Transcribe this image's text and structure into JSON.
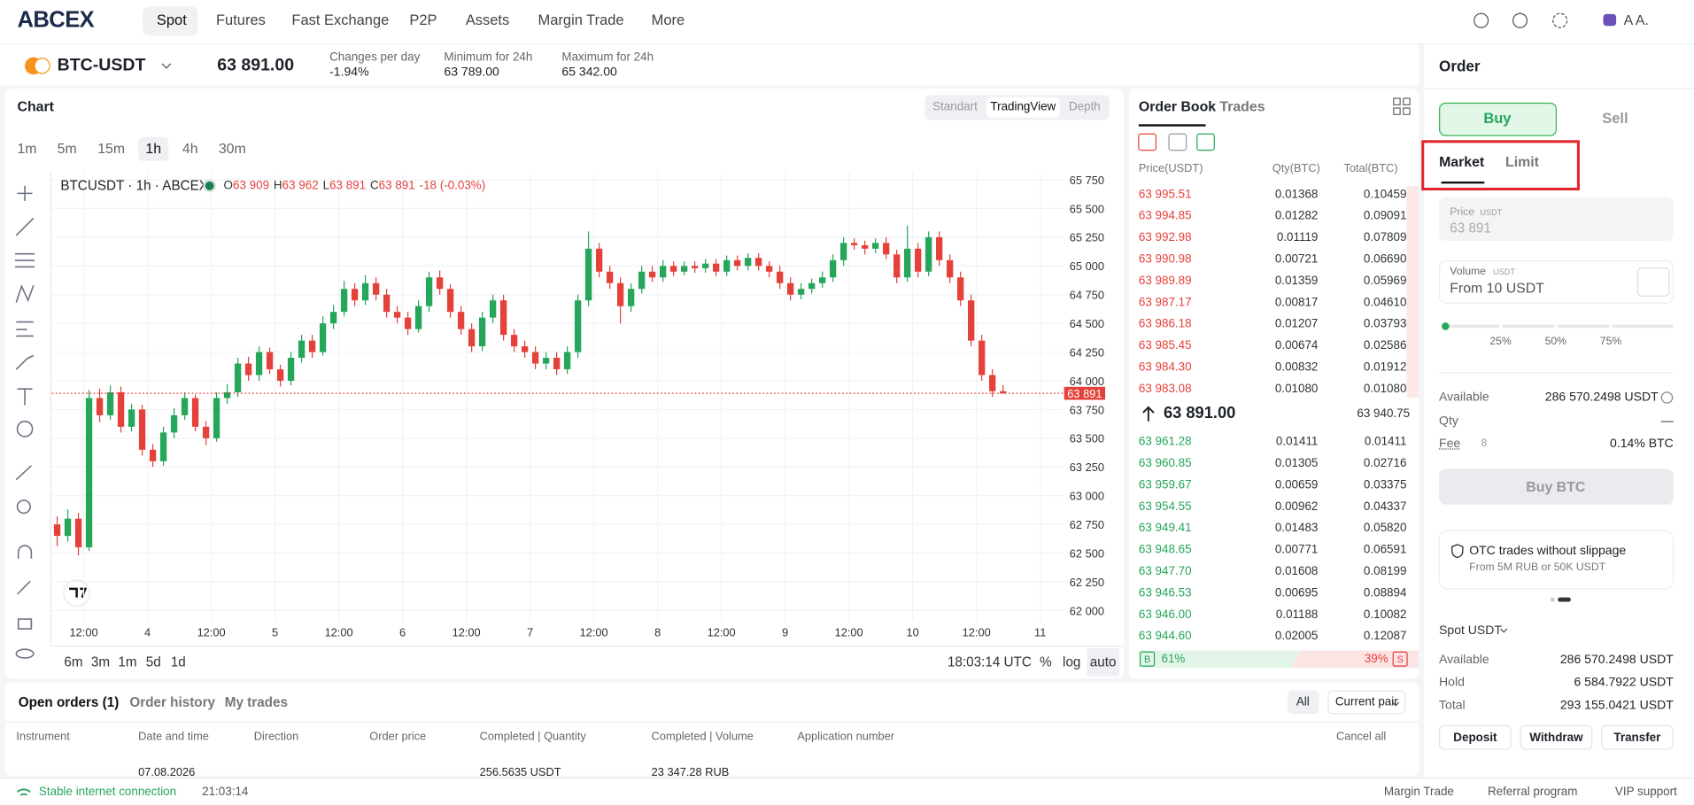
{
  "header": {
    "logo": "ABCEX",
    "nav": [
      "Spot",
      "Futures",
      "Fast Exchange",
      "P2P",
      "Assets",
      "Margin Trade",
      "More"
    ],
    "user": "A A."
  },
  "ticker": {
    "pair": "BTC-USDT",
    "price": "63 891.00",
    "stats": [
      {
        "label": "Changes per day",
        "value": "-1.94%"
      },
      {
        "label": "Minimum for 24h",
        "value": "63 789.00"
      },
      {
        "label": "Maximum for 24h",
        "value": "65 342.00"
      }
    ]
  },
  "chart_panel": {
    "title": "Chart",
    "views": [
      "Standart",
      "TradingView",
      "Depth"
    ],
    "intervals": [
      "1m",
      "5m",
      "15m",
      "1h",
      "4h",
      "30m"
    ],
    "symbol": "BTCUSDT · 1h · ABCEX",
    "ohlc": [
      "O",
      "63 909",
      "H",
      "63 962",
      "L",
      "63 891",
      "C",
      "63 891",
      "-18 (-0.03%)"
    ],
    "ranges": [
      "6m",
      "3m",
      "1m",
      "5d",
      "1d"
    ],
    "clock": "18:03:14 UTC",
    "scale_modes": [
      "%",
      "log",
      "auto"
    ]
  },
  "chart_data": {
    "type": "candlestick",
    "up_color": "#26a65b",
    "down_color": "#e5413b",
    "grid": true,
    "x": [
      1,
      3,
      5,
      7,
      9,
      11,
      13,
      15,
      17,
      19,
      21,
      23,
      25,
      27,
      29,
      31,
      33,
      35,
      37,
      39,
      41,
      43,
      45,
      47,
      49,
      51,
      53,
      55,
      57,
      59,
      61,
      63,
      65,
      67,
      69,
      71,
      73,
      75,
      77,
      79,
      81,
      83,
      85,
      87,
      89,
      91,
      93,
      95,
      97,
      99,
      101,
      103,
      105,
      107,
      109,
      111,
      113,
      115,
      117,
      119,
      121,
      123,
      125,
      127,
      129,
      131,
      133,
      135,
      137,
      139,
      141,
      143,
      145,
      147,
      149,
      151,
      153,
      155,
      157,
      159,
      161,
      163,
      165,
      167,
      169,
      171,
      173,
      175,
      177,
      179
    ],
    "open": [
      62750,
      62650,
      62800,
      62550,
      63850,
      63700,
      63900,
      63600,
      63750,
      63400,
      63300,
      63550,
      63700,
      63850,
      63600,
      63500,
      63850,
      63900,
      64150,
      64050,
      64250,
      64100,
      64000,
      64200,
      64350,
      64250,
      64500,
      64600,
      64800,
      64700,
      64850,
      64750,
      64600,
      64550,
      64450,
      64650,
      64900,
      64800,
      64600,
      64450,
      64300,
      64550,
      64700,
      64400,
      64300,
      64250,
      64150,
      64200,
      64100,
      64250,
      64700,
      65150,
      64950,
      64850,
      64650,
      64800,
      64950,
      64900,
      65000,
      64950,
      65000,
      64980,
      65020,
      64950,
      65050,
      65000,
      65070,
      65000,
      64950,
      64850,
      64750,
      64800,
      64850,
      64900,
      65050,
      65200,
      65180,
      65150,
      65200,
      65100,
      64900,
      65150,
      64950,
      65250,
      65050,
      64900,
      64700,
      64350,
      64050,
      63909
    ],
    "high": [
      62820,
      62880,
      62850,
      63920,
      63930,
      63960,
      63950,
      63800,
      63790,
      63450,
      63600,
      63760,
      63900,
      63880,
      63650,
      63900,
      63970,
      64200,
      64210,
      64300,
      64290,
      64140,
      64250,
      64400,
      64400,
      64560,
      64660,
      64870,
      64850,
      64920,
      64900,
      64800,
      64650,
      64600,
      64700,
      64950,
      64960,
      64840,
      64650,
      64500,
      64600,
      64750,
      64750,
      64450,
      64350,
      64300,
      64250,
      64250,
      64300,
      64750,
      65300,
      65200,
      65000,
      64900,
      64850,
      65000,
      65000,
      65050,
      65040,
      65040,
      65040,
      65060,
      65060,
      65090,
      65090,
      65110,
      65110,
      65040,
      65000,
      64900,
      64850,
      64890,
      64950,
      65100,
      65250,
      65240,
      65220,
      65240,
      65250,
      65140,
      65350,
      65200,
      65300,
      65300,
      65100,
      64950,
      64750,
      64400,
      64100,
      63962
    ],
    "low": [
      62560,
      62600,
      62480,
      62520,
      63640,
      63660,
      63550,
      63560,
      63350,
      63250,
      63260,
      63500,
      63660,
      63560,
      63440,
      63470,
      63800,
      63860,
      64000,
      64000,
      64060,
      63950,
      63960,
      64160,
      64200,
      64220,
      64450,
      64560,
      64650,
      64660,
      64700,
      64550,
      64500,
      64400,
      64420,
      64600,
      64750,
      64550,
      64400,
      64250,
      64260,
      64500,
      64350,
      64250,
      64200,
      64100,
      64100,
      64050,
      64060,
      64200,
      64650,
      64900,
      64800,
      64500,
      64600,
      64760,
      64860,
      64860,
      64910,
      64920,
      64940,
      64940,
      64910,
      64910,
      64960,
      64960,
      64960,
      64900,
      64800,
      64700,
      64710,
      64760,
      64810,
      64860,
      65000,
      65140,
      65100,
      65110,
      65060,
      64850,
      64860,
      64900,
      64910,
      65000,
      64850,
      64650,
      64300,
      64000,
      63860,
      63891
    ],
    "close": [
      62650,
      62800,
      62550,
      63850,
      63700,
      63900,
      63600,
      63750,
      63400,
      63300,
      63550,
      63700,
      63850,
      63600,
      63500,
      63850,
      63900,
      64150,
      64050,
      64250,
      64100,
      64000,
      64200,
      64350,
      64250,
      64500,
      64600,
      64800,
      64700,
      64850,
      64750,
      64600,
      64550,
      64450,
      64650,
      64900,
      64800,
      64600,
      64450,
      64300,
      64550,
      64700,
      64400,
      64300,
      64250,
      64150,
      64200,
      64100,
      64250,
      64700,
      65150,
      64950,
      64850,
      64650,
      64800,
      64950,
      64900,
      65000,
      64950,
      65000,
      64980,
      65020,
      64950,
      65050,
      65000,
      65070,
      65000,
      64950,
      64850,
      64750,
      64800,
      64850,
      64900,
      65050,
      65200,
      65180,
      65150,
      65200,
      65100,
      64900,
      65150,
      64950,
      65250,
      65050,
      64900,
      64700,
      64350,
      64050,
      63909,
      63891
    ],
    "xlim": [
      0,
      190.5
    ],
    "xticks": [
      {
        "value": 6,
        "label": "12:00"
      },
      {
        "value": 18,
        "label": "4"
      },
      {
        "value": 30,
        "label": "12:00"
      },
      {
        "value": 42,
        "label": "5"
      },
      {
        "value": 54,
        "label": "12:00"
      },
      {
        "value": 66,
        "label": "6"
      },
      {
        "value": 78,
        "label": "12:00"
      },
      {
        "value": 90,
        "label": "7"
      },
      {
        "value": 102,
        "label": "12:00"
      },
      {
        "value": 114,
        "label": "8"
      },
      {
        "value": 126,
        "label": "12:00"
      },
      {
        "value": 138,
        "label": "9"
      },
      {
        "value": 150,
        "label": "12:00"
      },
      {
        "value": 162,
        "label": "10"
      },
      {
        "value": 174,
        "label": "12:00"
      },
      {
        "value": 186,
        "label": "11"
      }
    ],
    "ylim": [
      61860,
      65810
    ],
    "yticks": [
      {
        "value": 62000,
        "label": "62 000"
      },
      {
        "value": 62250,
        "label": "62 250"
      },
      {
        "value": 62500,
        "label": "62 500"
      },
      {
        "value": 62750,
        "label": "62 750"
      },
      {
        "value": 63000,
        "label": "63 000"
      },
      {
        "value": 63250,
        "label": "63 250"
      },
      {
        "value": 63500,
        "label": "63 500"
      },
      {
        "value": 63750,
        "label": "63 750"
      },
      {
        "value": 64000,
        "label": "64 000"
      },
      {
        "value": 64250,
        "label": "64 250"
      },
      {
        "value": 64500,
        "label": "64 500"
      },
      {
        "value": 64750,
        "label": "64 750"
      },
      {
        "value": 65000,
        "label": "65 000"
      },
      {
        "value": 65250,
        "label": "65 250"
      },
      {
        "value": 65500,
        "label": "65 500"
      },
      {
        "value": 65750,
        "label": "65 750"
      }
    ],
    "last_price": {
      "value": 63891,
      "label": "63 891"
    }
  },
  "order_book": {
    "tabs": [
      "Order Book",
      "Trades"
    ],
    "columns": [
      "Price(USDT)",
      "Qty(BTC)",
      "Total(BTC)"
    ],
    "asks": [
      [
        "63 995.51",
        "0.01368",
        "0.10459"
      ],
      [
        "63 994.85",
        "0.01282",
        "0.09091"
      ],
      [
        "63 992.98",
        "0.01119",
        "0.07809"
      ],
      [
        "63 990.98",
        "0.00721",
        "0.06690"
      ],
      [
        "63 989.89",
        "0.01359",
        "0.05969"
      ],
      [
        "63 987.17",
        "0.00817",
        "0.04610"
      ],
      [
        "63 986.18",
        "0.01207",
        "0.03793"
      ],
      [
        "63 985.45",
        "0.00674",
        "0.02586"
      ],
      [
        "63 984.30",
        "0.00832",
        "0.01912"
      ],
      [
        "63 983.08",
        "0.01080",
        "0.01080"
      ]
    ],
    "last": "63 891.00",
    "mark": "63 940.75",
    "bids": [
      [
        "63 961.28",
        "0.01411",
        "0.01411"
      ],
      [
        "63 960.85",
        "0.01305",
        "0.02716"
      ],
      [
        "63 959.67",
        "0.00659",
        "0.03375"
      ],
      [
        "63 954.55",
        "0.00962",
        "0.04337"
      ],
      [
        "63 949.41",
        "0.01483",
        "0.05820"
      ],
      [
        "63 948.65",
        "0.00771",
        "0.06591"
      ],
      [
        "63 947.70",
        "0.01608",
        "0.08199"
      ],
      [
        "63 946.53",
        "0.00695",
        "0.08894"
      ],
      [
        "63 946.00",
        "0.01188",
        "0.10082"
      ],
      [
        "63 944.60",
        "0.02005",
        "0.12087"
      ]
    ],
    "buy_label": "B",
    "buy_share": "61%",
    "sell_share": "39%",
    "sell_label": "S"
  },
  "order_form": {
    "title": "Order",
    "sides": [
      "Buy",
      "Sell"
    ],
    "types": [
      "Market",
      "Limit"
    ],
    "price_label": "Price",
    "price_unit": "USDT",
    "price": "63 891",
    "volume_label": "Volume",
    "volume_unit": "USDT",
    "volume_placeholder": "From 10 USDT",
    "steps": [
      "25%",
      "50%",
      "75%"
    ],
    "rows": [
      [
        "Available",
        "286 570.2498 USDT"
      ],
      [
        "Qty",
        "—"
      ],
      [
        "Fee",
        "0.14% BTC"
      ]
    ],
    "fee_points": "8",
    "submit": "Buy BTC",
    "promo_title": "OTC trades without slippage",
    "promo_text": "From 5M RUB or 50K USDT",
    "wallet": "Spot USDT",
    "balances": [
      [
        "Available",
        "286 570.2498 USDT"
      ],
      [
        "Hold",
        "6 584.7922 USDT"
      ],
      [
        "Total",
        "293 155.0421 USDT"
      ]
    ],
    "actions": [
      "Deposit",
      "Withdraw",
      "Transfer"
    ]
  },
  "orders": {
    "tabs": [
      "Open orders (1)",
      "Order history",
      "My trades"
    ],
    "filters": [
      "All",
      "Current pair"
    ],
    "columns": [
      "Instrument",
      "Date and time",
      "Direction",
      "Order price",
      "Completed | Quantity",
      "Completed | Volume",
      "Application number"
    ],
    "cancel_all": "Cancel all",
    "row": {
      "date": "07.08.2026",
      "quantity": "256.5635 USDT",
      "volume": "23 347.28 RUB"
    }
  },
  "status_bar": {
    "connection": "Stable internet connection",
    "time": "21:03:14",
    "links": [
      "Margin Trade",
      "Referral program",
      "VIP support"
    ]
  }
}
